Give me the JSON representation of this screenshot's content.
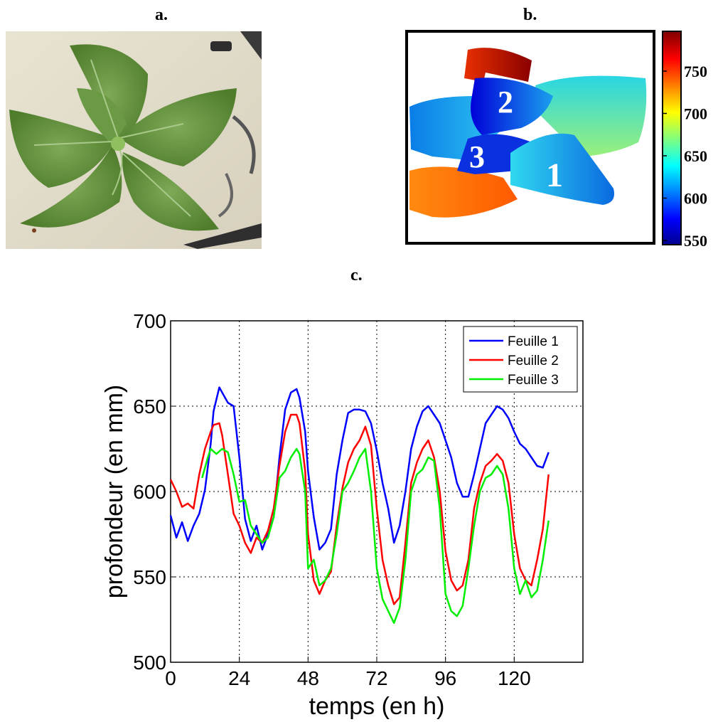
{
  "panels": {
    "a": "a.",
    "b": "b.",
    "c": "c."
  },
  "depth_map": {
    "leaf_numbers": [
      "2",
      "3",
      "1"
    ],
    "colorbar_ticks": [
      550,
      600,
      650,
      700,
      750
    ],
    "colorbar_range": [
      545,
      797
    ]
  },
  "chart_data": {
    "type": "line",
    "xlabel": "temps (en h)",
    "ylabel": "profondeur (en mm)",
    "xlim": [
      0,
      144
    ],
    "ylim": [
      500,
      700
    ],
    "xticks": [
      0,
      24,
      48,
      72,
      96,
      120
    ],
    "yticks": [
      500,
      550,
      600,
      650,
      700
    ],
    "grid": true,
    "legend_position": "top-right",
    "series": [
      {
        "name": "Feuille 1",
        "color": "#0000ff",
        "x": [
          0,
          2,
          4,
          6,
          8,
          10,
          12,
          14,
          15,
          17,
          18,
          20,
          22,
          24,
          26,
          28,
          30,
          32,
          34,
          36,
          38,
          40,
          42,
          44,
          45,
          47,
          48,
          50,
          52,
          54,
          56,
          58,
          60,
          62,
          64,
          66,
          68,
          70,
          72,
          74,
          76,
          78,
          80,
          82,
          84,
          86,
          88,
          90,
          92,
          94,
          96,
          98,
          100,
          102,
          104,
          106,
          108,
          110,
          112,
          114,
          116,
          118,
          120,
          122,
          124,
          126,
          128,
          130,
          132
        ],
        "y": [
          586,
          573,
          582,
          571,
          580,
          587,
          601,
          628,
          647,
          661,
          658,
          652,
          650,
          620,
          584,
          571,
          580,
          566,
          575,
          585,
          620,
          648,
          658,
          660,
          655,
          635,
          612,
          585,
          566,
          570,
          578,
          610,
          630,
          646,
          648,
          648,
          647,
          640,
          624,
          605,
          590,
          570,
          580,
          600,
          625,
          638,
          647,
          650,
          645,
          640,
          630,
          620,
          605,
          597,
          597,
          610,
          625,
          640,
          645,
          650,
          648,
          643,
          635,
          628,
          625,
          620,
          615,
          614,
          623
        ]
      },
      {
        "name": "Feuille 2",
        "color": "#ff0000",
        "x": [
          0,
          2,
          4,
          6,
          8,
          10,
          12,
          14,
          15,
          17,
          18,
          20,
          22,
          24,
          26,
          28,
          30,
          32,
          34,
          36,
          38,
          40,
          42,
          44,
          45,
          47,
          48,
          50,
          52,
          54,
          56,
          58,
          60,
          62,
          64,
          66,
          68,
          70,
          72,
          74,
          76,
          78,
          80,
          82,
          84,
          86,
          88,
          90,
          92,
          94,
          96,
          98,
          100,
          102,
          104,
          106,
          108,
          110,
          112,
          114,
          116,
          118,
          120,
          122,
          124,
          126,
          128,
          130,
          132
        ],
        "y": [
          607,
          600,
          591,
          593,
          590,
          610,
          625,
          635,
          639,
          640,
          633,
          610,
          587,
          580,
          570,
          564,
          573,
          570,
          577,
          590,
          615,
          635,
          645,
          645,
          640,
          612,
          575,
          548,
          540,
          548,
          553,
          580,
          602,
          617,
          625,
          630,
          638,
          627,
          590,
          560,
          545,
          534,
          538,
          570,
          605,
          617,
          625,
          630,
          620,
          600,
          565,
          548,
          542,
          545,
          560,
          590,
          605,
          615,
          618,
          622,
          618,
          605,
          575,
          555,
          548,
          545,
          560,
          578,
          610
        ]
      },
      {
        "name": "Feuille 3",
        "color": "#00ee00",
        "x": [
          11,
          13,
          14,
          16,
          18,
          20,
          22,
          24,
          26,
          28,
          30,
          32,
          34,
          36,
          38,
          40,
          42,
          44,
          45,
          47,
          48,
          50,
          52,
          54,
          56,
          58,
          60,
          62,
          64,
          66,
          68,
          70,
          72,
          74,
          76,
          78,
          80,
          82,
          84,
          86,
          88,
          90,
          92,
          94,
          96,
          98,
          100,
          102,
          104,
          106,
          108,
          110,
          112,
          114,
          116,
          118,
          120,
          122,
          124,
          126,
          128,
          130,
          132
        ],
        "y": [
          608,
          620,
          625,
          622,
          625,
          623,
          610,
          594,
          595,
          580,
          575,
          570,
          573,
          585,
          608,
          612,
          620,
          625,
          622,
          600,
          555,
          560,
          545,
          548,
          555,
          575,
          600,
          605,
          612,
          620,
          625,
          600,
          555,
          537,
          530,
          523,
          532,
          560,
          600,
          610,
          613,
          620,
          618,
          590,
          540,
          530,
          527,
          533,
          555,
          580,
          600,
          608,
          610,
          615,
          610,
          590,
          555,
          540,
          548,
          538,
          542,
          560,
          583
        ]
      }
    ]
  }
}
